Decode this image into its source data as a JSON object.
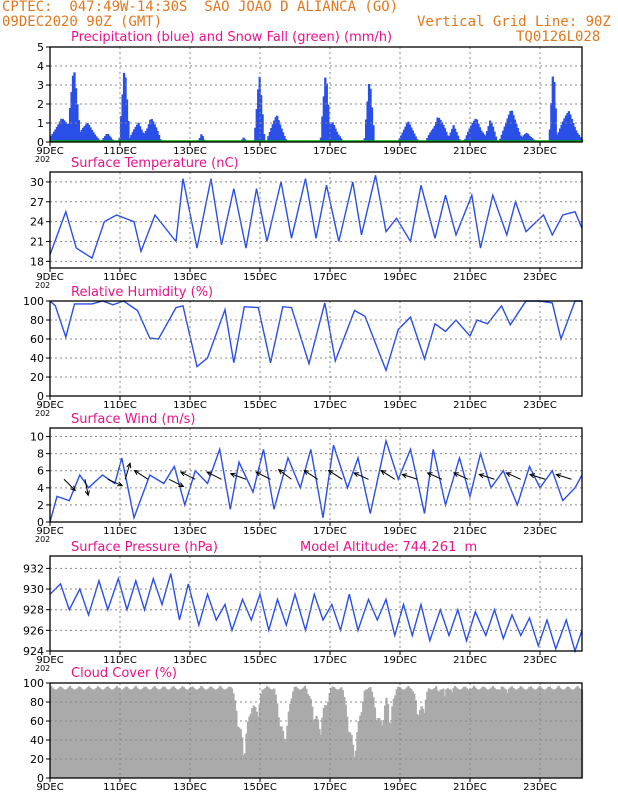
{
  "header": {
    "line1_left": "CPTEC:  047:49W-14:30S  SAO JOAO D ALIANCA (GO)",
    "line2_left": "09DEC2020 90Z (GMT)",
    "line2_right": "Vertical Grid Line: 90Z",
    "line3_right": "TQ0126L028"
  },
  "colors": {
    "header": "#e07820",
    "title": "#e8138a",
    "series": "#2a4ee8",
    "snow": "#00aa00",
    "cloud": "#aaaaaa",
    "grid": "#888888"
  },
  "x_axis": {
    "tick_labels": [
      "9DEC",
      "11DEC",
      "13DEC",
      "15DEC",
      "17DEC",
      "19DEC",
      "21DEC",
      "23DEC"
    ],
    "tick_days": [
      0,
      2,
      4,
      6,
      8,
      10,
      12,
      14
    ],
    "range_days": [
      0,
      15.2
    ],
    "year_stub": "202"
  },
  "chart_data": [
    {
      "id": "precip",
      "type": "bar",
      "title": "Precipitation (blue) and Snow Fall (green) (mm/h)",
      "ylim": [
        0,
        5
      ],
      "yticks": [
        0,
        1,
        2,
        3,
        4,
        5
      ],
      "series": [
        {
          "name": "Precipitation",
          "color": "#2a4ee8"
        },
        {
          "name": "Snow Fall",
          "color": "#00aa00"
        }
      ],
      "events": [
        {
          "day": 0.3,
          "peak": 1.5,
          "width": 0.5
        },
        {
          "day": 0.65,
          "peak": 4.0,
          "width": 0.2
        },
        {
          "day": 1.05,
          "peak": 1.2,
          "width": 0.4
        },
        {
          "day": 1.6,
          "peak": 0.6,
          "width": 0.2
        },
        {
          "day": 2.1,
          "peak": 4.1,
          "width": 0.15
        },
        {
          "day": 2.5,
          "peak": 1.3,
          "width": 0.3
        },
        {
          "day": 2.85,
          "peak": 1.9,
          "width": 0.3
        },
        {
          "day": 4.3,
          "peak": 0.6,
          "width": 0.1
        },
        {
          "day": 5.5,
          "peak": 0.4,
          "width": 0.1
        },
        {
          "day": 5.95,
          "peak": 3.8,
          "width": 0.15
        },
        {
          "day": 6.45,
          "peak": 1.6,
          "width": 0.3
        },
        {
          "day": 7.85,
          "peak": 4.3,
          "width": 0.15
        },
        {
          "day": 8.05,
          "peak": 1.5,
          "width": 0.3
        },
        {
          "day": 9.1,
          "peak": 3.6,
          "width": 0.15
        },
        {
          "day": 10.2,
          "peak": 1.1,
          "width": 0.3
        },
        {
          "day": 11.05,
          "peak": 2.0,
          "width": 0.35
        },
        {
          "day": 11.5,
          "peak": 0.9,
          "width": 0.2
        },
        {
          "day": 12.15,
          "peak": 1.8,
          "width": 0.35
        },
        {
          "day": 12.55,
          "peak": 1.5,
          "width": 0.2
        },
        {
          "day": 13.15,
          "peak": 1.8,
          "width": 0.35
        },
        {
          "day": 13.6,
          "peak": 0.8,
          "width": 0.25
        },
        {
          "day": 14.35,
          "peak": 4.0,
          "width": 0.12
        },
        {
          "day": 14.8,
          "peak": 2.1,
          "width": 0.4
        }
      ]
    },
    {
      "id": "temp",
      "type": "line",
      "title": "Surface Temperature (nC)",
      "ylim": [
        17,
        31.5
      ],
      "yticks": [
        18,
        21,
        24,
        27,
        30
      ],
      "x": [
        0,
        0.45,
        0.75,
        1.2,
        1.55,
        1.9,
        2.4,
        2.6,
        3.0,
        3.6,
        3.8,
        4.2,
        4.6,
        4.9,
        5.25,
        5.6,
        5.9,
        6.2,
        6.6,
        6.9,
        7.3,
        7.6,
        7.9,
        8.25,
        8.65,
        8.9,
        9.3,
        9.6,
        9.9,
        10.3,
        10.6,
        11.0,
        11.3,
        11.6,
        12.05,
        12.3,
        12.65,
        13.05,
        13.3,
        13.6,
        14.1,
        14.35,
        14.65,
        15.0,
        15.2
      ],
      "y": [
        19,
        25.5,
        20,
        18.5,
        24,
        25,
        24,
        19.5,
        25,
        21,
        30.5,
        20,
        30.5,
        20.5,
        29,
        20,
        29,
        21,
        30,
        21.5,
        30.5,
        21.5,
        29.5,
        21,
        30,
        22,
        31,
        22.5,
        24.5,
        21,
        29.5,
        21.5,
        28,
        22,
        28,
        20,
        28,
        22,
        27,
        22.5,
        25,
        22,
        25,
        25.5,
        23
      ]
    },
    {
      "id": "rh",
      "type": "line",
      "title": "Relative Humidity (%)",
      "ylim": [
        0,
        100
      ],
      "yticks": [
        0,
        20,
        40,
        60,
        80,
        100
      ],
      "x": [
        0,
        0.15,
        0.45,
        0.7,
        1.2,
        1.5,
        1.8,
        2.1,
        2.5,
        2.85,
        3.1,
        3.6,
        3.8,
        4.2,
        4.5,
        5.0,
        5.25,
        5.55,
        5.95,
        6.3,
        6.65,
        6.9,
        7.4,
        7.85,
        8.15,
        8.7,
        9.0,
        9.6,
        9.95,
        10.3,
        10.7,
        11.0,
        11.3,
        11.6,
        12.0,
        12.2,
        12.5,
        12.9,
        13.15,
        13.6,
        14.0,
        14.35,
        14.6,
        15.0,
        15.2
      ],
      "y": [
        100,
        95,
        62,
        97,
        97,
        100,
        96,
        100,
        90,
        61,
        60,
        93,
        95,
        31,
        40,
        91,
        35,
        94,
        93,
        35,
        94,
        93,
        34,
        98,
        37,
        90,
        84,
        27,
        70,
        83,
        39,
        76,
        68,
        80,
        63,
        80,
        76,
        95,
        75,
        100,
        100,
        98,
        60,
        100,
        100
      ]
    },
    {
      "id": "wind",
      "type": "line",
      "title": "Surface Wind (m/s)",
      "ylim": [
        0,
        11
      ],
      "yticks": [
        0,
        2,
        4,
        6,
        8,
        10
      ],
      "x": [
        0,
        0.2,
        0.55,
        0.85,
        1.1,
        1.5,
        1.85,
        2.05,
        2.4,
        2.85,
        3.25,
        3.55,
        3.85,
        4.15,
        4.5,
        4.85,
        5.15,
        5.4,
        5.8,
        6.1,
        6.4,
        6.8,
        7.15,
        7.45,
        7.8,
        8.1,
        8.5,
        8.8,
        9.15,
        9.6,
        9.95,
        10.3,
        10.7,
        10.95,
        11.3,
        11.7,
        12.0,
        12.3,
        12.6,
        12.95,
        13.35,
        13.7,
        14.0,
        14.35,
        14.65,
        15.0,
        15.2
      ],
      "y": [
        0,
        3,
        2.5,
        5.5,
        4,
        5.5,
        4.5,
        7.5,
        0.5,
        5.5,
        4.5,
        6.5,
        2,
        6,
        4.5,
        8.5,
        1.5,
        7,
        3.5,
        8.5,
        1.5,
        7.5,
        4,
        8.5,
        0.5,
        9,
        4,
        7.5,
        1,
        9.5,
        5,
        8.5,
        1,
        8.5,
        2,
        7.5,
        3,
        8,
        4,
        6,
        2,
        6.5,
        4,
        6,
        2.5,
        4,
        5.5
      ],
      "arrows": [
        {
          "day": 0.4,
          "dx": 0.7,
          "dy": 0.7
        },
        {
          "day": 1.0,
          "dx": 0.2,
          "dy": 1.0
        },
        {
          "day": 1.65,
          "dx": 0.9,
          "dy": 0.4
        },
        {
          "day": 2.15,
          "dx": 0.3,
          "dy": -1.0
        },
        {
          "day": 2.8,
          "dx": -0.85,
          "dy": -0.55
        },
        {
          "day": 3.4,
          "dx": 0.9,
          "dy": 0.45
        },
        {
          "day": 4.15,
          "dx": -0.9,
          "dy": -0.45
        },
        {
          "day": 4.9,
          "dx": -0.9,
          "dy": -0.45
        },
        {
          "day": 5.6,
          "dx": -0.95,
          "dy": -0.35
        },
        {
          "day": 6.3,
          "dx": -0.9,
          "dy": -0.45
        },
        {
          "day": 6.9,
          "dx": -0.8,
          "dy": -0.6
        },
        {
          "day": 7.65,
          "dx": -0.85,
          "dy": -0.55
        },
        {
          "day": 8.35,
          "dx": -0.85,
          "dy": -0.55
        },
        {
          "day": 9.1,
          "dx": -0.9,
          "dy": -0.4
        },
        {
          "day": 9.85,
          "dx": -0.85,
          "dy": -0.55
        },
        {
          "day": 10.5,
          "dx": -0.95,
          "dy": -0.3
        },
        {
          "day": 11.2,
          "dx": -0.9,
          "dy": -0.4
        },
        {
          "day": 11.95,
          "dx": -0.9,
          "dy": -0.4
        },
        {
          "day": 12.7,
          "dx": -0.95,
          "dy": -0.3
        },
        {
          "day": 13.45,
          "dx": -0.9,
          "dy": -0.4
        },
        {
          "day": 14.15,
          "dx": -0.95,
          "dy": -0.3
        },
        {
          "day": 14.9,
          "dx": -0.95,
          "dy": -0.3
        }
      ]
    },
    {
      "id": "pres",
      "type": "line",
      "title": "Surface Pressure (hPa)",
      "subtitle": "Model Altitude: 744.261  m",
      "ylim": [
        924,
        933.2
      ],
      "yticks": [
        924,
        926,
        928,
        930,
        932
      ],
      "x": [
        0,
        0.3,
        0.55,
        0.85,
        1.1,
        1.4,
        1.65,
        1.95,
        2.2,
        2.45,
        2.7,
        2.95,
        3.2,
        3.45,
        3.7,
        3.95,
        4.25,
        4.5,
        4.75,
        5.0,
        5.2,
        5.5,
        5.75,
        6.0,
        6.25,
        6.5,
        6.75,
        7.0,
        7.3,
        7.55,
        7.8,
        8.05,
        8.3,
        8.55,
        8.8,
        9.1,
        9.35,
        9.6,
        9.85,
        10.1,
        10.35,
        10.6,
        10.85,
        11.15,
        11.4,
        11.65,
        11.9,
        12.15,
        12.45,
        12.7,
        12.95,
        13.2,
        13.45,
        13.7,
        13.95,
        14.2,
        14.45,
        14.75,
        15.0,
        15.2
      ],
      "y": [
        929.5,
        930.5,
        928,
        930,
        927.5,
        930.8,
        928,
        931,
        928,
        930.8,
        928,
        931,
        928.5,
        931.5,
        927,
        930.5,
        926.5,
        929.5,
        927,
        928.5,
        926,
        929,
        927,
        929.5,
        926,
        929,
        926.5,
        929.5,
        926,
        929.5,
        927,
        928.5,
        926,
        929.5,
        926,
        929,
        927,
        929,
        925.5,
        928.5,
        925.5,
        928.5,
        925,
        928,
        925.5,
        928,
        925,
        927.8,
        925.5,
        928,
        925.2,
        927.5,
        925.5,
        927.2,
        924.5,
        927,
        924.2,
        927,
        924,
        926
      ]
    },
    {
      "id": "cloud",
      "type": "area",
      "title": "Cloud Cover (%)",
      "ylim": [
        0,
        100
      ],
      "yticks": [
        0,
        20,
        40,
        60,
        80,
        100
      ],
      "dips": [
        {
          "day": 5.5,
          "min": 12,
          "width": 0.35
        },
        {
          "day": 5.85,
          "min": 48,
          "width": 0.25
        },
        {
          "day": 6.65,
          "min": 20,
          "width": 0.3
        },
        {
          "day": 7.65,
          "min": 35,
          "width": 0.4
        },
        {
          "day": 8.65,
          "min": 8,
          "width": 0.35
        },
        {
          "day": 9.4,
          "min": 35,
          "width": 0.3
        },
        {
          "day": 9.7,
          "min": 45,
          "width": 0.2
        },
        {
          "day": 10.55,
          "min": 48,
          "width": 0.3
        },
        {
          "day": 11.2,
          "min": 80,
          "width": 0.5
        },
        {
          "day": 13.0,
          "min": 88,
          "width": 0.8
        }
      ]
    }
  ]
}
